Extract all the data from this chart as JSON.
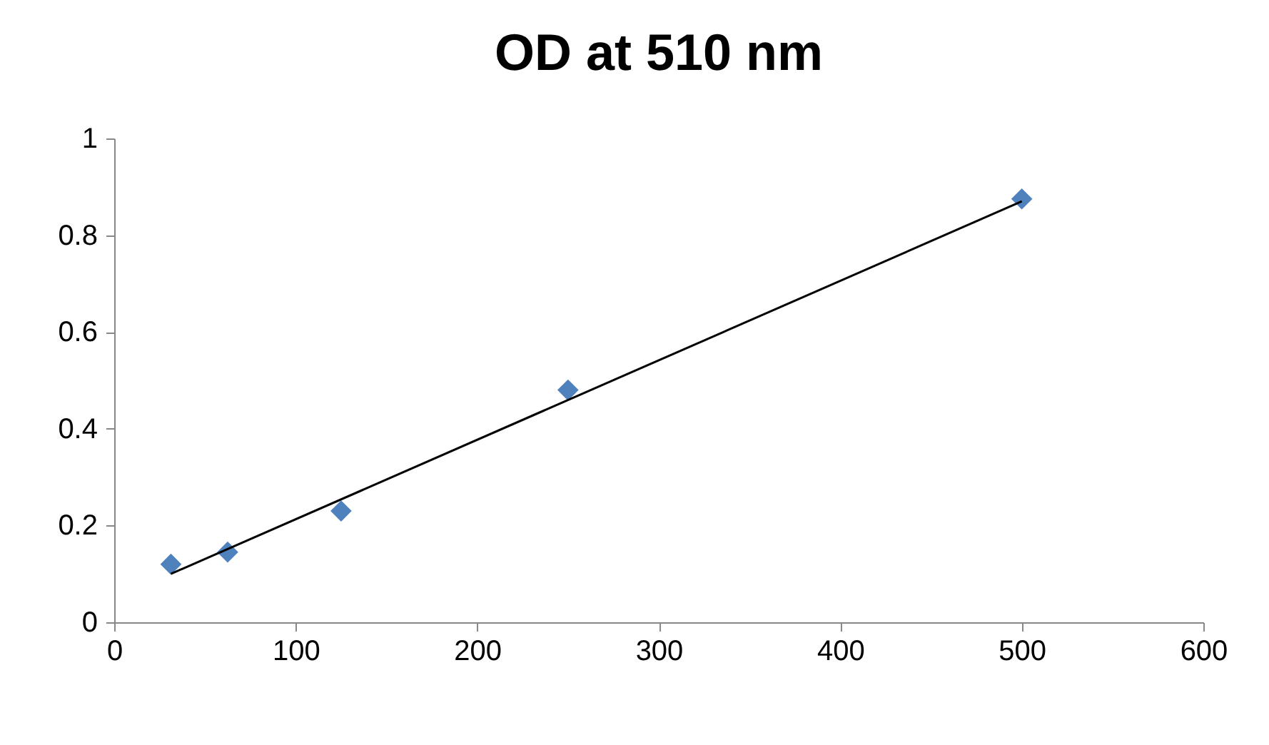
{
  "chart_data": {
    "type": "scatter",
    "title": "OD at 510 nm",
    "x": [
      31.25,
      62.5,
      125,
      250,
      500
    ],
    "series": [
      {
        "color": "#4f81bd",
        "values": [
          0.12,
          0.145,
          0.23,
          0.48,
          0.875
        ],
        "marker": "diamond"
      },
      {
        "type": "line",
        "color": "#000000",
        "x": [
          31.25,
          500
        ],
        "values": [
          0.1,
          0.87
        ],
        "marker": "none"
      }
    ],
    "xlim": [
      0,
      600
    ],
    "xticks": [
      0,
      100,
      200,
      300,
      400,
      500,
      600
    ],
    "ylim": [
      0,
      1
    ],
    "yticks": [
      0,
      0.2,
      0.4,
      0.6,
      0.8,
      1
    ]
  }
}
